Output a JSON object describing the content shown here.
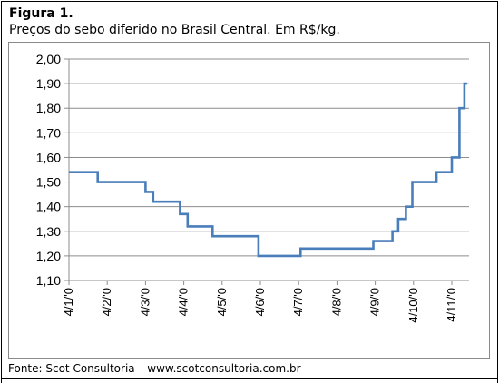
{
  "figure": {
    "title": "Figura 1.",
    "subtitle": "Preços do sebo diferido no Brasil Central. Em R$/kg.",
    "source": "Fonte: Scot Consultoria – www.scotconsultoria.com.br"
  },
  "chart_data": {
    "type": "line",
    "title": "",
    "xlabel": "",
    "ylabel": "",
    "ylim": [
      1.1,
      2.0
    ],
    "yticks": [
      "1,10",
      "1,20",
      "1,30",
      "1,40",
      "1,50",
      "1,60",
      "1,70",
      "1,80",
      "1,90",
      "2,00"
    ],
    "ytick_values": [
      1.1,
      1.2,
      1.3,
      1.4,
      1.5,
      1.6,
      1.7,
      1.8,
      1.9,
      2.0
    ],
    "xlim": [
      0,
      10.45
    ],
    "xtick_labels": [
      "4/1/'0",
      "4/2/'0",
      "4/3/'0",
      "4/4/'0",
      "4/5/'0",
      "4/6/'0",
      "4/7/'0",
      "4/8/'0",
      "4/9/'0",
      "4/10/'0",
      "4/11/'0"
    ],
    "xtick_values": [
      0,
      1,
      2,
      3,
      4,
      5,
      6,
      7,
      8,
      9,
      10
    ],
    "grid": "horizontal",
    "line_color": "#4a7ebb",
    "series": [
      {
        "x": [
          0,
          0.75,
          0.75,
          2.0,
          2.0,
          2.2,
          2.2,
          2.9,
          2.9,
          3.1,
          3.1,
          3.75,
          3.75,
          4.95,
          4.95,
          6.05,
          6.05,
          7.95,
          7.95,
          8.45,
          8.45,
          8.6,
          8.6,
          8.8,
          8.8,
          8.97,
          8.97,
          9.6,
          9.6,
          9.75,
          9.75,
          10.0,
          10.0,
          10.2,
          10.2,
          10.33,
          10.33,
          10.4
        ],
        "y": [
          1.54,
          1.54,
          1.5,
          1.5,
          1.46,
          1.46,
          1.42,
          1.42,
          1.37,
          1.37,
          1.32,
          1.32,
          1.28,
          1.28,
          1.2,
          1.2,
          1.23,
          1.23,
          1.26,
          1.26,
          1.3,
          1.3,
          1.35,
          1.35,
          1.4,
          1.4,
          1.5,
          1.5,
          1.54,
          1.54,
          1.54,
          1.54,
          1.6,
          1.6,
          1.8,
          1.8,
          1.9,
          1.9
        ]
      }
    ]
  }
}
